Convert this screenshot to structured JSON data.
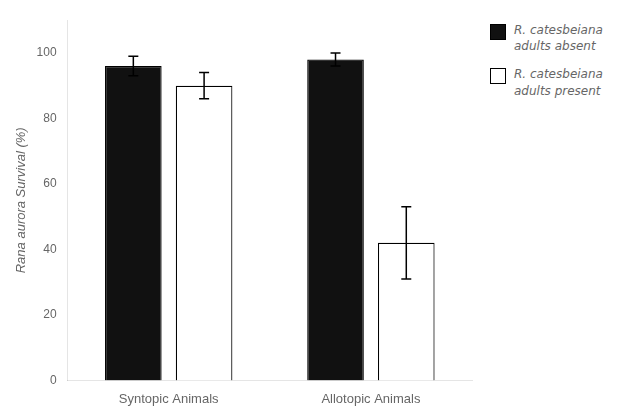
{
  "chart_data": {
    "type": "bar",
    "categories": [
      "Syntopic Animals",
      "Allotopic Animals"
    ],
    "series": [
      {
        "name": "R. catesbeiana\nadults absent",
        "color": "#111111",
        "values": [
          96,
          98
        ],
        "errors": [
          3,
          2
        ]
      },
      {
        "name": "R. catesbeiana\nadults present",
        "color": "#ffffff",
        "values": [
          90,
          42
        ],
        "errors": [
          4,
          11
        ]
      }
    ],
    "ylabel": "Rana aurora Survival (%)",
    "ylim": [
      0,
      110
    ],
    "yticks": [
      0,
      20,
      40,
      60,
      80,
      100
    ],
    "grid": false,
    "legend": "upper right"
  }
}
